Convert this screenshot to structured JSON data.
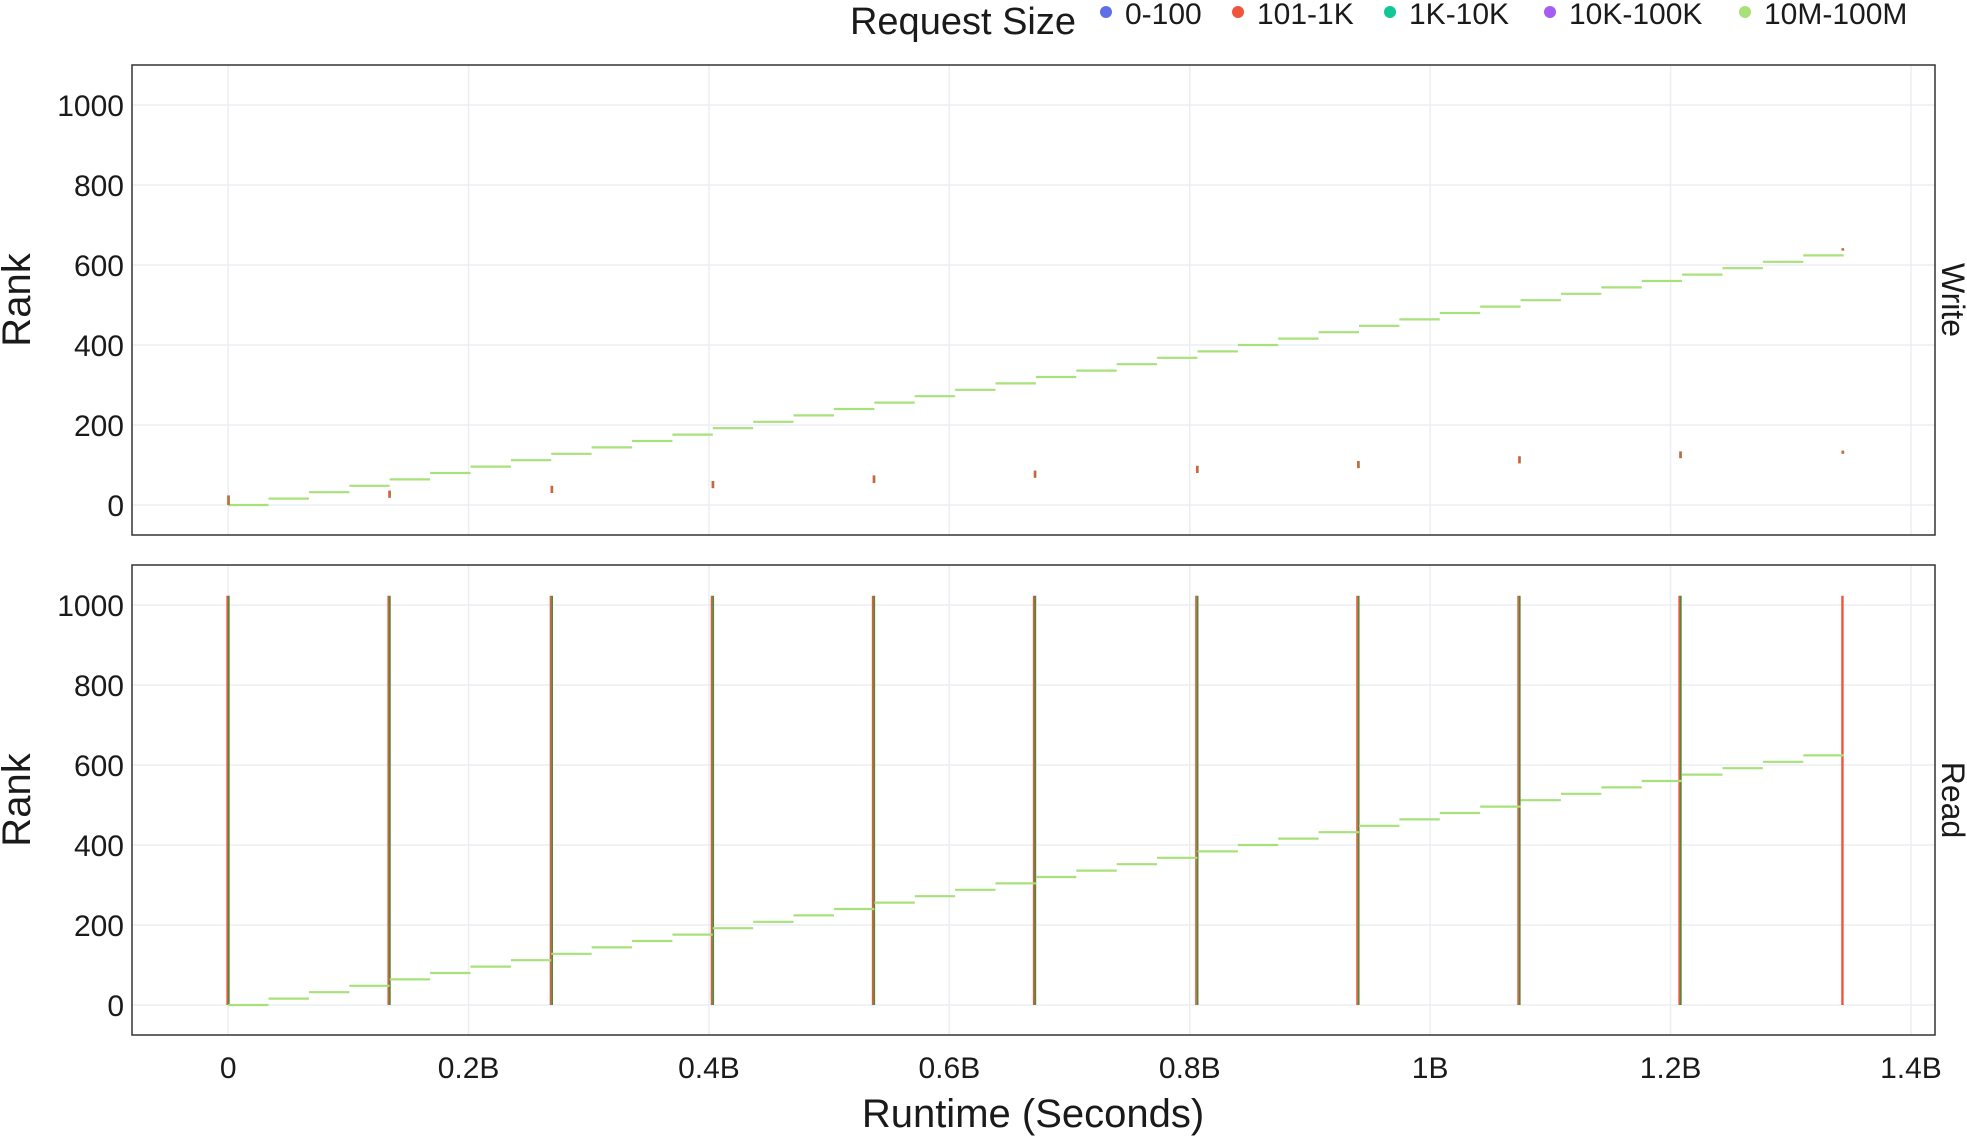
{
  "chart_data": {
    "type": "scatter",
    "xlabel": "Runtime (Seconds)",
    "ylabel": "Rank",
    "x_range": [
      -0.08,
      1.42
    ],
    "x_ticks": [
      0,
      0.2,
      0.4,
      0.6,
      0.8,
      1.0,
      1.2,
      1.4
    ],
    "x_tick_labels": [
      "0",
      "0.2B",
      "0.4B",
      "0.6B",
      "0.8B",
      "1B",
      "1.2B",
      "1.4B"
    ],
    "y_range": [
      -75,
      1100
    ],
    "y_ticks": [
      0,
      200,
      400,
      600,
      800,
      1000
    ],
    "y_tick_labels": [
      "0",
      "200",
      "400",
      "600",
      "800",
      "1000"
    ],
    "grid": true,
    "legend": {
      "title": "Request Size",
      "placement": "top",
      "entries": [
        {
          "label": "0-100",
          "color": "#5f6fe8"
        },
        {
          "label": "101-1K",
          "color": "#f0553b"
        },
        {
          "label": "1K-10K",
          "color": "#10c896"
        },
        {
          "label": "10K-100K",
          "color": "#a55cf5"
        },
        {
          "label": "10M-100M",
          "color": "#a8e07a"
        }
      ]
    },
    "staircase": {
      "series": "10M-100M",
      "step_ranks": 16,
      "step_runtime": 0.0336,
      "steps": 40,
      "start_runtime": 0.0,
      "start_rank": 0
    },
    "panels": [
      {
        "strip": "Write",
        "staircase": true,
        "marks_101_1K": [
          {
            "x": 0.0,
            "y_from": 0,
            "y_to": 24
          },
          {
            "x": 0.134,
            "y_from": 18,
            "y_to": 36
          },
          {
            "x": 0.269,
            "y_from": 30,
            "y_to": 48
          },
          {
            "x": 0.403,
            "y_from": 42,
            "y_to": 60
          },
          {
            "x": 0.537,
            "y_from": 55,
            "y_to": 74
          },
          {
            "x": 0.671,
            "y_from": 68,
            "y_to": 86
          },
          {
            "x": 0.806,
            "y_from": 80,
            "y_to": 98
          },
          {
            "x": 0.94,
            "y_from": 92,
            "y_to": 110
          },
          {
            "x": 1.074,
            "y_from": 104,
            "y_to": 122
          },
          {
            "x": 1.208,
            "y_from": 117,
            "y_to": 134
          },
          {
            "x": 1.343,
            "y_from": 128,
            "y_to": 136
          },
          {
            "x": 1.343,
            "y_from": 636,
            "y_to": 642
          }
        ]
      },
      {
        "strip": "Read",
        "staircase": true,
        "full_height_columns": [
          {
            "x": 0.0,
            "y_from": 0,
            "y_to": 1023,
            "series": "mixed"
          },
          {
            "x": 0.134,
            "y_from": 0,
            "y_to": 1023,
            "series": "mixed"
          },
          {
            "x": 0.269,
            "y_from": 0,
            "y_to": 1023,
            "series": "mixed"
          },
          {
            "x": 0.403,
            "y_from": 0,
            "y_to": 1023,
            "series": "mixed"
          },
          {
            "x": 0.537,
            "y_from": 0,
            "y_to": 1023,
            "series": "mixed"
          },
          {
            "x": 0.671,
            "y_from": 0,
            "y_to": 1023,
            "series": "mixed"
          },
          {
            "x": 0.806,
            "y_from": 0,
            "y_to": 1023,
            "series": "mixed"
          },
          {
            "x": 0.94,
            "y_from": 0,
            "y_to": 1023,
            "series": "mixed"
          },
          {
            "x": 1.074,
            "y_from": 0,
            "y_to": 1023,
            "series": "mixed"
          },
          {
            "x": 1.208,
            "y_from": 0,
            "y_to": 1023,
            "series": "mixed"
          },
          {
            "x": 1.343,
            "y_from": 0,
            "y_to": 1023,
            "series": "101-1K"
          }
        ]
      }
    ]
  }
}
